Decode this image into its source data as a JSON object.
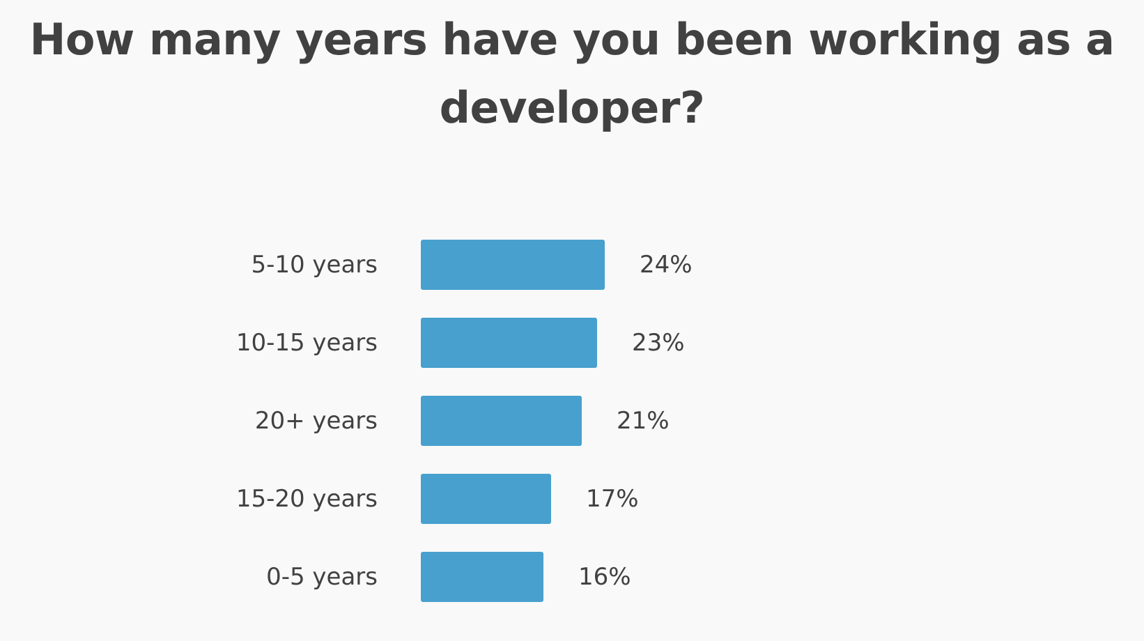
{
  "chart_data": {
    "type": "bar",
    "orientation": "horizontal",
    "title": "How many years have you been working as a developer?",
    "categories": [
      "5-10 years",
      "10-15 years",
      "20+ years",
      "15-20 years",
      "0-5 years"
    ],
    "values": [
      24,
      23,
      21,
      17,
      16
    ],
    "value_labels": [
      "24%",
      "23%",
      "21%",
      "17%",
      "16%"
    ],
    "unit": "%",
    "xlim": [
      0,
      24
    ],
    "grid": false,
    "bar_color": "#47a0cd",
    "text_color": "#414141",
    "background": "#f9f9f9"
  }
}
